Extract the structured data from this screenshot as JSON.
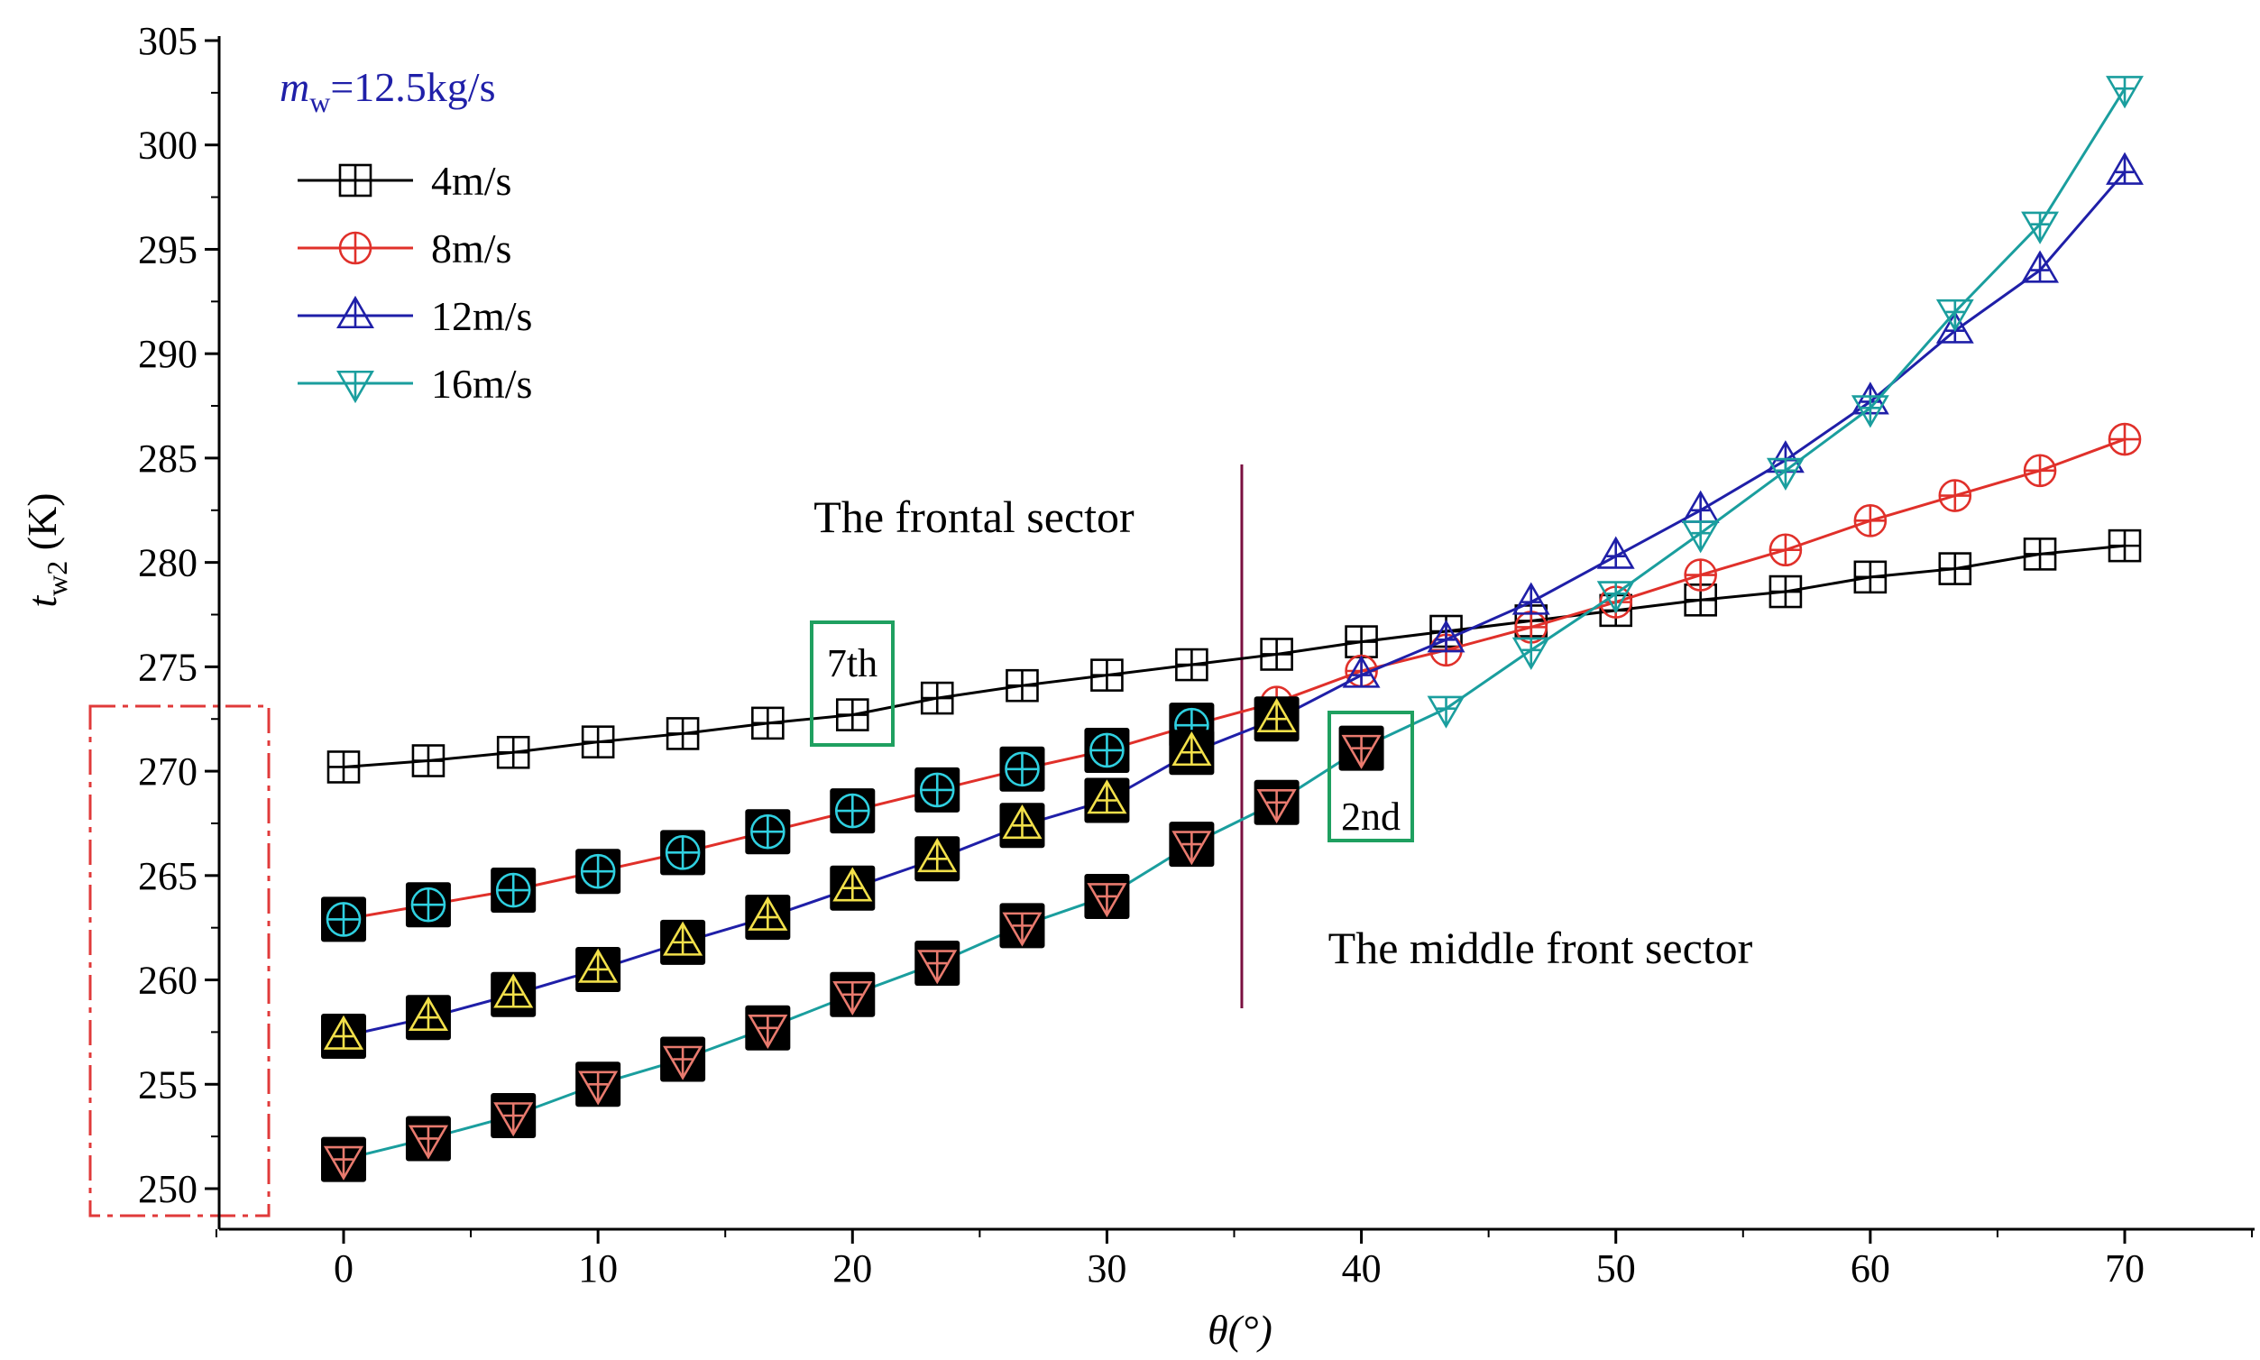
{
  "chart_data": {
    "type": "line",
    "title": "",
    "xlabel": "θ(°)",
    "ylabel": "t_w2 (K)",
    "ylabel_main": "t",
    "ylabel_sub": "w2",
    "ylabel_unit": " (K)",
    "xlim": [
      -5,
      75
    ],
    "ylim": [
      248,
      305
    ],
    "x_ticks": [
      0,
      10,
      20,
      30,
      40,
      50,
      60,
      70
    ],
    "y_ticks": [
      250,
      255,
      260,
      265,
      270,
      275,
      280,
      285,
      290,
      295,
      300,
      305
    ],
    "grid": false,
    "legend_position": "top-left",
    "legend_header": {
      "symbol": "m",
      "sub": "w",
      "rest": "=12.5kg/s",
      "color": "#1f1fa8"
    },
    "x": [
      0,
      3.33,
      6.67,
      10,
      13.33,
      16.67,
      20,
      23.33,
      26.67,
      30,
      33.33,
      36.67,
      40,
      43.33,
      46.67,
      50,
      53.33,
      56.67,
      60,
      63.33,
      66.67,
      70
    ],
    "series": [
      {
        "name": "4m/s",
        "color": "#000000",
        "marker": "square-grid",
        "values": [
          270.2,
          270.5,
          270.9,
          271.4,
          271.8,
          272.3,
          272.7,
          273.5,
          274.1,
          274.6,
          275.1,
          275.6,
          276.2,
          276.7,
          277.2,
          277.7,
          278.2,
          278.6,
          279.3,
          279.7,
          280.4,
          280.8
        ]
      },
      {
        "name": "8m/s",
        "color": "#e0302a",
        "marker": "circle-plus",
        "values": [
          262.9,
          263.6,
          264.3,
          265.2,
          266.1,
          267.1,
          268.1,
          269.1,
          270.1,
          271.0,
          272.2,
          273.3,
          274.8,
          275.8,
          276.9,
          278.1,
          279.4,
          280.6,
          282.0,
          283.2,
          284.4,
          285.9
        ]
      },
      {
        "name": "12m/s",
        "color": "#1f1fa8",
        "marker": "triangle-up",
        "values": [
          257.3,
          258.2,
          259.3,
          260.5,
          261.8,
          263.0,
          264.4,
          265.8,
          267.4,
          268.6,
          270.9,
          272.5,
          274.6,
          276.3,
          278.1,
          280.3,
          282.5,
          284.9,
          287.7,
          291.1,
          294.0,
          298.7
        ]
      },
      {
        "name": "16m/s",
        "color": "#1a9e9e",
        "marker": "triangle-down",
        "values": [
          251.4,
          252.4,
          253.5,
          255.0,
          256.2,
          257.7,
          259.3,
          260.8,
          262.6,
          264.0,
          266.5,
          268.5,
          271.1,
          273.0,
          275.8,
          278.5,
          281.4,
          284.4,
          287.4,
          292.0,
          296.2,
          302.7
        ]
      }
    ],
    "highlight_points": [
      {
        "series": "8m/s",
        "count": 11,
        "marker_color": "#2fd0e0"
      },
      {
        "series": "12m/s",
        "count": 12,
        "marker_color": "#f2e04a"
      },
      {
        "series": "16m/s",
        "count": 13,
        "marker_color": "#e87a6e"
      }
    ],
    "annotations": {
      "frontal_sector": "The frontal sector",
      "middle_front_sector": "The middle front sector",
      "label_7th": "7th",
      "label_2nd": "2nd",
      "sector_boundary_x": 35.3,
      "divider_color": "#7a1040",
      "box_color": "#1fa060",
      "dashed_box_color": "#e03a3a"
    }
  }
}
